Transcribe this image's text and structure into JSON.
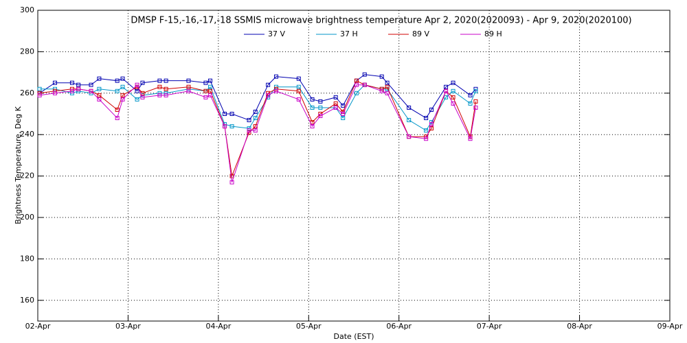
{
  "chart_data": {
    "type": "line",
    "title": "DMSP F-15,-16,-17,-18 SSMIS microwave brightness temperature Apr  2, 2020(2020093) - Apr  9, 2020(2020100)",
    "x_label": "Date (EST)",
    "y_label": "Brightness Temperature, Deg K",
    "x": [
      0.02,
      0.19,
      0.38,
      0.45,
      0.59,
      0.68,
      0.88,
      0.94,
      1.1,
      1.16,
      1.35,
      1.42,
      1.67,
      1.86,
      1.91,
      2.07,
      2.15,
      2.34,
      2.41,
      2.55,
      2.64,
      2.89,
      3.04,
      3.13,
      3.3,
      3.38,
      3.53,
      3.62,
      3.81,
      3.87,
      4.11,
      4.3,
      4.36,
      4.52,
      4.6,
      4.79,
      4.85
    ],
    "series": [
      {
        "name": "37 V",
        "color": "#0000b0",
        "values": [
          260,
          265,
          265,
          264,
          264,
          267,
          266,
          267,
          261,
          265,
          266,
          266,
          266,
          265,
          266,
          250,
          250,
          247,
          251,
          264,
          268,
          267,
          257,
          256,
          258,
          254,
          266,
          269,
          268,
          265,
          253,
          248,
          252,
          263,
          265,
          259,
          262
        ]
      },
      {
        "name": "37 H",
        "color": "#0096c8",
        "values": [
          262,
          262,
          260,
          261,
          260,
          262,
          261,
          263,
          257,
          259,
          260,
          260,
          262,
          261,
          263,
          245,
          244,
          243,
          248,
          258,
          263,
          263,
          253,
          253,
          253,
          248,
          260,
          264,
          262,
          262,
          247,
          242,
          246,
          258,
          261,
          255,
          261
        ]
      },
      {
        "name": "89 V",
        "color": "#d00000",
        "values": [
          260,
          261,
          262,
          262,
          261,
          259,
          252,
          259,
          263,
          260,
          263,
          262,
          263,
          261,
          261,
          244,
          220,
          241,
          244,
          260,
          262,
          261,
          246,
          250,
          255,
          251,
          266,
          264,
          262,
          263,
          239,
          239,
          243,
          261,
          258,
          239,
          256
        ]
      },
      {
        "name": "89 H",
        "color": "#c800c8",
        "values": [
          259,
          260,
          261,
          262,
          261,
          257,
          248,
          257,
          264,
          258,
          259,
          259,
          261,
          258,
          259,
          244,
          217,
          242,
          242,
          259,
          261,
          257,
          244,
          249,
          253,
          250,
          264,
          264,
          261,
          260,
          239,
          238,
          245,
          261,
          255,
          238,
          253
        ]
      }
    ],
    "xlim": [
      0,
      7
    ],
    "xticks": [
      {
        "value": 0,
        "label": "02-Apr"
      },
      {
        "value": 1,
        "label": "03-Apr"
      },
      {
        "value": 2,
        "label": "04-Apr"
      },
      {
        "value": 3,
        "label": "05-Apr"
      },
      {
        "value": 4,
        "label": "06-Apr"
      },
      {
        "value": 5,
        "label": "07-Apr"
      },
      {
        "value": 6,
        "label": "08-Apr"
      },
      {
        "value": 7,
        "label": "09-Apr"
      }
    ],
    "ylim": [
      150,
      300
    ],
    "yticks": [
      160,
      180,
      200,
      220,
      240,
      260,
      280,
      300
    ],
    "grid": true
  }
}
